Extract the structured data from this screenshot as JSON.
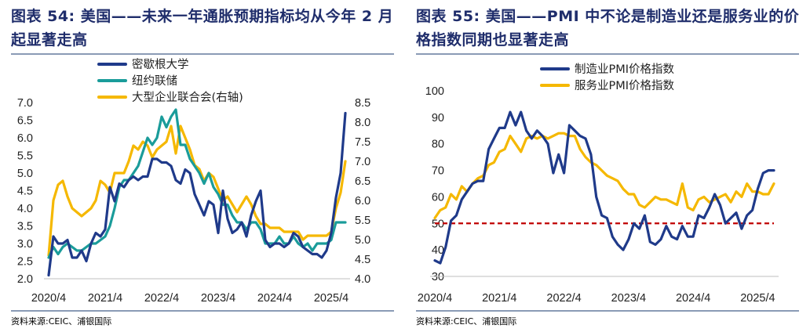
{
  "left": {
    "title_label": "图表 54:",
    "title_text": "美国——未来一年通胀预期指标均从今年 2 月起显著走高",
    "source": "资料来源:CEIC、浦银国际",
    "chart_data": {
      "type": "line",
      "x_ticks": [
        "2020/4",
        "2021/4",
        "2022/4",
        "2023/4",
        "2024/4",
        "2025/4"
      ],
      "y_left": {
        "min": 2.0,
        "max": 7.0,
        "ticks": [
          "7.0",
          "6.5",
          "6.0",
          "5.5",
          "5.0",
          "4.5",
          "4.0",
          "3.5",
          "3.0",
          "2.5",
          "2.0"
        ]
      },
      "y_right": {
        "min": 4.0,
        "max": 8.5,
        "ticks": [
          "8.5",
          "8.0",
          "7.5",
          "7.0",
          "6.5",
          "6.0",
          "5.5",
          "5.0",
          "4.5",
          "4.0"
        ]
      },
      "grid": false,
      "legend_position": "top-center",
      "series": [
        {
          "name": "密歇根大学",
          "axis": "left",
          "color": "#1f3a8a",
          "values": [
            2.1,
            3.2,
            3.0,
            3.0,
            3.1,
            2.6,
            2.6,
            2.8,
            2.5,
            3.0,
            3.3,
            3.2,
            3.4,
            4.6,
            4.2,
            4.7,
            4.6,
            4.8,
            4.9,
            4.8,
            4.9,
            4.9,
            5.4,
            5.4,
            5.3,
            5.3,
            5.2,
            4.8,
            4.7,
            5.1,
            5.0,
            4.4,
            4.1,
            3.8,
            4.2,
            4.1,
            3.3,
            4.5,
            3.7,
            3.3,
            3.4,
            3.6,
            3.2,
            3.8,
            4.2,
            4.5,
            3.1,
            2.9,
            3.0,
            3.0,
            2.9,
            3.0,
            3.3,
            3.2,
            2.9,
            2.8,
            2.7,
            2.7,
            2.6,
            2.8,
            3.3,
            4.3,
            5.0,
            6.7
          ]
        },
        {
          "name": "纽约联储",
          "axis": "left",
          "color": "#1a9c9a",
          "values": [
            2.6,
            2.9,
            2.7,
            2.9,
            3.0,
            2.9,
            2.8,
            2.8,
            2.9,
            3.0,
            3.0,
            3.1,
            3.2,
            3.5,
            4.0,
            4.6,
            4.8,
            4.8,
            5.0,
            5.2,
            5.6,
            6.0,
            5.8,
            6.0,
            6.6,
            6.3,
            6.6,
            6.8,
            5.8,
            5.8,
            5.4,
            5.2,
            5.0,
            4.7,
            5.0,
            4.6,
            4.4,
            4.1,
            4.1,
            3.8,
            3.6,
            3.6,
            3.4,
            3.6,
            3.6,
            3.4,
            3.0,
            3.0,
            3.0,
            3.2,
            3.0,
            3.0,
            3.2,
            3.0,
            2.9,
            3.0,
            2.8,
            3.0,
            3.0,
            3.0,
            3.1,
            3.6,
            3.6,
            3.6
          ]
        },
        {
          "name": "大型企业联合会(右轴)",
          "axis": "right",
          "color": "#f5b800",
          "values": [
            4.6,
            6.0,
            6.4,
            6.5,
            6.1,
            5.8,
            5.7,
            5.6,
            5.7,
            5.8,
            6.0,
            6.5,
            6.4,
            6.2,
            6.7,
            6.7,
            6.7,
            7.0,
            7.4,
            7.3,
            7.5,
            7.4,
            7.1,
            7.3,
            7.4,
            7.5,
            7.9,
            7.2,
            7.9,
            7.6,
            7.3,
            6.9,
            6.8,
            6.5,
            6.7,
            6.6,
            6.3,
            6.0,
            6.1,
            5.9,
            5.7,
            5.9,
            6.1,
            5.9,
            5.6,
            5.4,
            5.4,
            5.3,
            5.3,
            5.3,
            5.2,
            5.2,
            5.2,
            5.2,
            5.0,
            5.1,
            5.1,
            5.1,
            5.1,
            5.1,
            5.2,
            5.8,
            6.2,
            7.0
          ]
        }
      ]
    }
  },
  "right": {
    "title_label": "图表 55:",
    "title_text": "美国——PMI 中不论是制造业还是服务业的价格指数同期也显著走高",
    "source": "资料来源:CEIC、浦银国际",
    "chart_data": {
      "type": "line",
      "x_ticks": [
        "2020/4",
        "2021/4",
        "2022/4",
        "2023/4",
        "2024/4",
        "2025/4"
      ],
      "y_left": {
        "min": 30,
        "max": 100,
        "ticks": [
          "100",
          "90",
          "80",
          "70",
          "60",
          "50",
          "40",
          "30"
        ]
      },
      "grid": false,
      "legend_position": "top-center",
      "reference_line": {
        "value": 50,
        "color": "#c00000",
        "style": "dashed"
      },
      "series": [
        {
          "name": "制造业PMI价格指数",
          "color": "#1f3a8a",
          "values": [
            36,
            35,
            41,
            51,
            53,
            59,
            62,
            65,
            66,
            66,
            78,
            82,
            86,
            86,
            92,
            87,
            92,
            85,
            82,
            85,
            83,
            80,
            69,
            76,
            69,
            87,
            85,
            83,
            82,
            76,
            60,
            53,
            52,
            45,
            42,
            40,
            44,
            50,
            48,
            53,
            43,
            42,
            44,
            49,
            45,
            44,
            49,
            45,
            45,
            53,
            52,
            56,
            61,
            57,
            50,
            52,
            54,
            48,
            53,
            55,
            63,
            69,
            70,
            70
          ]
        },
        {
          "name": "服务业PMI价格指数",
          "color": "#f5b800",
          "values": [
            52,
            55,
            56,
            61,
            59,
            64,
            62,
            65,
            67,
            68,
            72,
            73,
            77,
            78,
            83,
            80,
            77,
            82,
            83,
            82,
            83,
            82,
            83,
            84,
            84,
            83,
            83,
            78,
            75,
            73,
            72,
            70,
            68,
            67,
            66,
            63,
            61,
            61,
            57,
            56,
            58,
            60,
            59,
            59,
            58,
            57,
            65,
            56,
            55,
            59,
            60,
            58,
            59,
            60,
            61,
            58,
            62,
            60,
            65,
            62,
            62,
            61,
            61,
            65
          ]
        }
      ]
    }
  }
}
